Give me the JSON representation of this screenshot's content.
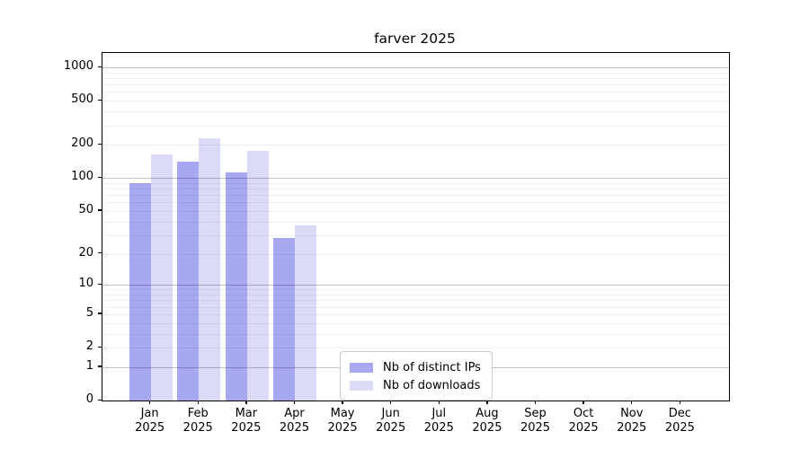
{
  "title": "farver 2025",
  "colors": {
    "bar_distinct_ips": "#a8a8f1",
    "bar_downloads": "#dbdbf8",
    "grid_major": "#c3c3c3",
    "grid_minor": "#ededed",
    "axis": "#000000",
    "background": "#ffffff"
  },
  "legend": {
    "entries": [
      "Nb of distinct IPs",
      "Nb of downloads"
    ]
  },
  "chart_data": {
    "type": "bar",
    "title": "farver 2025",
    "categories": [
      "Jan 2025",
      "Feb 2025",
      "Mar 2025",
      "Apr 2025",
      "May 2025",
      "Jun 2025",
      "Jul 2025",
      "Aug 2025",
      "Sep 2025",
      "Oct 2025",
      "Nov 2025",
      "Dec 2025"
    ],
    "series": [
      {
        "name": "Nb of distinct IPs",
        "color": "#a8a8f1",
        "values": [
          90,
          140,
          113,
          28,
          null,
          null,
          null,
          null,
          null,
          null,
          null,
          null
        ]
      },
      {
        "name": "Nb of downloads",
        "color": "#dbdbf8",
        "values": [
          165,
          230,
          175,
          37,
          null,
          null,
          null,
          null,
          null,
          null,
          null,
          null
        ]
      }
    ],
    "xlabel": "",
    "ylabel": "",
    "y_scale": "log10(1+y)",
    "y_ticks": [
      1000,
      500,
      200,
      100,
      50,
      20,
      10,
      5,
      2,
      1,
      0
    ],
    "ylim": [
      0,
      1348
    ],
    "grid": true,
    "legend_position": "lower center, inside plot"
  }
}
